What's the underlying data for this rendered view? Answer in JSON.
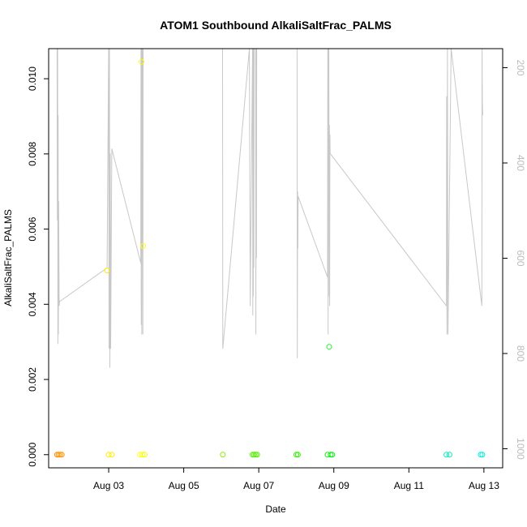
{
  "chart_data": {
    "type": "scatter",
    "title": "ATOM1 Southbound AlkaliSaltFrac_PALMS",
    "xlabel": "Date",
    "ylabel": "AlkaliSaltFrac_PALMS",
    "xlim": [
      "2016-08-01 09:36",
      "2016-08-13 12:00"
    ],
    "ylim": [
      -0.00035,
      0.0108
    ],
    "x_ticks": [
      {
        "value": "2016-08-03",
        "label": "Aug 03"
      },
      {
        "value": "2016-08-05",
        "label": "Aug 05"
      },
      {
        "value": "2016-08-07",
        "label": "Aug 07"
      },
      {
        "value": "2016-08-09",
        "label": "Aug 09"
      },
      {
        "value": "2016-08-11",
        "label": "Aug 11"
      },
      {
        "value": "2016-08-13",
        "label": "Aug 13"
      }
    ],
    "y_ticks": [
      {
        "value": 0.0,
        "label": "0.000"
      },
      {
        "value": 0.002,
        "label": "0.002"
      },
      {
        "value": 0.004,
        "label": "0.004"
      },
      {
        "value": 0.006,
        "label": "0.006"
      },
      {
        "value": 0.008,
        "label": "0.008"
      },
      {
        "value": 0.01,
        "label": "0.010"
      }
    ],
    "secondary_axis": {
      "side": "right",
      "ylim": [
        1040,
        160
      ],
      "ticks": [
        {
          "value": 200,
          "label": "200"
        },
        {
          "value": 400,
          "label": "400"
        },
        {
          "value": 600,
          "label": "600"
        },
        {
          "value": 800,
          "label": "800"
        },
        {
          "value": 1000,
          "label": "1000"
        }
      ],
      "line_color": "#c8c8c8",
      "track": [
        [
          "2016-08-01 15:00",
          160
        ],
        [
          "2016-08-01 15:10",
          520
        ],
        [
          "2016-08-01 15:20",
          160
        ],
        [
          "2016-08-01 15:30",
          780
        ],
        [
          "2016-08-01 15:40",
          300
        ],
        [
          "2016-08-01 15:50",
          760
        ],
        [
          "2016-08-01 16:00",
          480
        ],
        [
          "2016-08-01 16:10",
          600
        ],
        [
          "2016-08-01 16:20",
          700
        ],
        [
          "2016-08-01 16:40",
          690
        ],
        [
          "2016-08-01 17:00",
          690
        ],
        [
          "2016-08-02 23:00",
          620
        ],
        [
          "2016-08-03 00:00",
          160
        ],
        [
          "2016-08-03 00:15",
          790
        ],
        [
          "2016-08-03 00:30",
          160
        ],
        [
          "2016-08-03 00:45",
          830
        ],
        [
          "2016-08-03 01:00",
          380
        ],
        [
          "2016-08-03 01:15",
          790
        ],
        [
          "2016-08-03 02:00",
          370
        ],
        [
          "2016-08-03 20:30",
          610
        ],
        [
          "2016-08-03 20:40",
          160
        ],
        [
          "2016-08-03 20:50",
          740
        ],
        [
          "2016-08-03 21:00",
          160
        ],
        [
          "2016-08-03 21:10",
          760
        ],
        [
          "2016-08-03 21:20",
          160
        ],
        [
          "2016-08-03 21:30",
          590
        ],
        [
          "2016-08-03 21:40",
          160
        ],
        [
          "2016-08-03 21:50",
          760
        ],
        [
          "2016-08-03 22:00",
          160
        ],
        [
          "2016-08-06 00:50",
          160
        ],
        [
          "2016-08-06 01:00",
          790
        ],
        [
          "2016-08-06 18:00",
          160
        ],
        [
          "2016-08-06 18:30",
          700
        ],
        [
          "2016-08-06 20:00",
          160
        ],
        [
          "2016-08-06 20:10",
          720
        ],
        [
          "2016-08-06 20:20",
          160
        ],
        [
          "2016-08-06 20:30",
          680
        ],
        [
          "2016-08-06 20:40",
          160
        ],
        [
          "2016-08-06 20:50",
          620
        ],
        [
          "2016-08-06 21:00",
          160
        ],
        [
          "2016-08-06 22:00",
          160
        ],
        [
          "2016-08-06 22:10",
          760
        ],
        [
          "2016-08-06 22:20",
          160
        ],
        [
          "2016-08-06 22:30",
          600
        ],
        [
          "2016-08-06 22:40",
          160
        ],
        [
          "2016-08-08 00:30",
          160
        ],
        [
          "2016-08-08 00:40",
          810
        ],
        [
          "2016-08-08 00:50",
          460
        ],
        [
          "2016-08-08 01:00",
          580
        ],
        [
          "2016-08-08 01:10",
          470
        ],
        [
          "2016-08-08 20:00",
          640
        ],
        [
          "2016-08-08 20:10",
          160
        ],
        [
          "2016-08-08 20:20",
          760
        ],
        [
          "2016-08-08 20:30",
          160
        ],
        [
          "2016-08-08 20:40",
          340
        ],
        [
          "2016-08-08 20:50",
          160
        ],
        [
          "2016-08-08 21:00",
          680
        ],
        [
          "2016-08-08 21:10",
          320
        ],
        [
          "2016-08-08 21:20",
          700
        ],
        [
          "2016-08-08 21:30",
          340
        ],
        [
          "2016-08-08 21:40",
          380
        ],
        [
          "2016-08-12 00:00",
          700
        ],
        [
          "2016-08-12 00:10",
          260
        ],
        [
          "2016-08-12 00:20",
          760
        ],
        [
          "2016-08-12 00:40",
          160
        ],
        [
          "2016-08-12 01:00",
          760
        ],
        [
          "2016-08-12 03:00",
          160
        ],
        [
          "2016-08-12 22:40",
          700
        ],
        [
          "2016-08-12 22:50",
          160
        ],
        [
          "2016-08-12 23:00",
          270
        ],
        [
          "2016-08-12 23:10",
          300
        ]
      ]
    },
    "series": [
      {
        "points": [
          {
            "x": "2016-08-01 15:00",
            "y": 0,
            "color": "#ff8800"
          },
          {
            "x": "2016-08-01 16:00",
            "y": 0,
            "color": "#ff8800"
          },
          {
            "x": "2016-08-01 17:00",
            "y": 0,
            "color": "#ff9900"
          },
          {
            "x": "2016-08-01 18:00",
            "y": 0,
            "color": "#ff9900"
          },
          {
            "x": "2016-08-02 23:00",
            "y": 0.0049,
            "color": "#ffee00"
          },
          {
            "x": "2016-08-03 00:00",
            "y": 0,
            "color": "#ffee00"
          },
          {
            "x": "2016-08-03 02:00",
            "y": 0,
            "color": "#ffee00"
          },
          {
            "x": "2016-08-03 20:00",
            "y": 0,
            "color": "#ffff00"
          },
          {
            "x": "2016-08-03 21:00",
            "y": 0.01045,
            "color": "#ffff00"
          },
          {
            "x": "2016-08-03 21:30",
            "y": 0,
            "color": "#ffff00"
          },
          {
            "x": "2016-08-03 22:00",
            "y": 0.00555,
            "color": "#ffff00"
          },
          {
            "x": "2016-08-03 23:00",
            "y": 0,
            "color": "#eeff00"
          },
          {
            "x": "2016-08-06 01:00",
            "y": 0,
            "color": "#88ee00"
          },
          {
            "x": "2016-08-06 20:00",
            "y": 0,
            "color": "#55ee00"
          },
          {
            "x": "2016-08-06 21:00",
            "y": 0,
            "color": "#55ee00"
          },
          {
            "x": "2016-08-06 22:00",
            "y": 0,
            "color": "#55ee00"
          },
          {
            "x": "2016-08-06 23:00",
            "y": 0,
            "color": "#55ee00"
          },
          {
            "x": "2016-08-08 00:00",
            "y": 0,
            "color": "#33ee00"
          },
          {
            "x": "2016-08-08 01:00",
            "y": 0,
            "color": "#33ee00"
          },
          {
            "x": "2016-08-08 20:00",
            "y": 0,
            "color": "#11ee00"
          },
          {
            "x": "2016-08-08 21:00",
            "y": 0.00287,
            "color": "#22ee33"
          },
          {
            "x": "2016-08-08 22:00",
            "y": 0,
            "color": "#11ee00"
          },
          {
            "x": "2016-08-08 23:00",
            "y": 0,
            "color": "#00ee22"
          },
          {
            "x": "2016-08-12 00:00",
            "y": 0,
            "color": "#00eebb"
          },
          {
            "x": "2016-08-12 02:00",
            "y": 0,
            "color": "#00eebb"
          },
          {
            "x": "2016-08-12 22:00",
            "y": 0,
            "color": "#00eedd"
          },
          {
            "x": "2016-08-12 23:00",
            "y": 0,
            "color": "#00eedd"
          }
        ]
      }
    ],
    "grid": false,
    "legend": "none"
  }
}
